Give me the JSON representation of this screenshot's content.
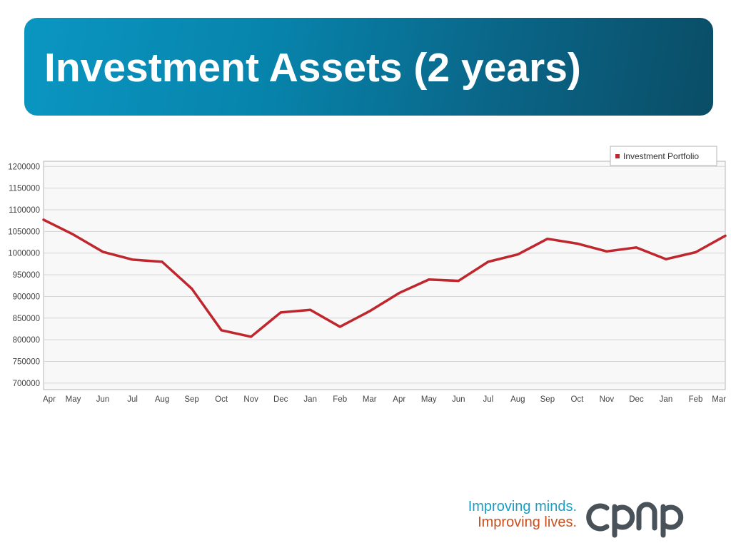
{
  "header": {
    "title": "Investment Assets (2 years)"
  },
  "footer": {
    "tagline_1": "Improving minds.",
    "tagline_2": "Improving lives.",
    "logo_text": "cpnp"
  },
  "colors": {
    "series": "#c0262d",
    "banner_start": "#0a96c2",
    "banner_end": "#0a4d66",
    "tagline_1": "#1a9fc4",
    "tagline_2": "#c8501e",
    "logo": "#4a5259"
  },
  "chart_data": {
    "type": "line",
    "title": "",
    "xlabel": "",
    "ylabel": "",
    "categories": [
      "Apr",
      "May",
      "Jun",
      "Jul",
      "Aug",
      "Sep",
      "Oct",
      "Nov",
      "Dec",
      "Jan",
      "Feb",
      "Mar",
      "Apr",
      "May",
      "Jun",
      "Jul",
      "Aug",
      "Sep",
      "Oct",
      "Nov",
      "Dec",
      "Jan",
      "Feb",
      "Mar"
    ],
    "series": [
      {
        "name": "Investment Portfolio",
        "values": [
          1077000,
          1043000,
          1003000,
          985000,
          980000,
          918000,
          822000,
          807000,
          863000,
          869000,
          830000,
          866000,
          908000,
          939000,
          936000,
          980000,
          997000,
          1033000,
          1022000,
          1004000,
          1013000,
          986000,
          1002000,
          1040000
        ]
      }
    ],
    "yticks": [
      700000,
      750000,
      800000,
      850000,
      900000,
      950000,
      1000000,
      1050000,
      1100000,
      1150000,
      1200000
    ],
    "ylim": [
      685000,
      1212000
    ],
    "grid": true,
    "legend": "top-right"
  }
}
